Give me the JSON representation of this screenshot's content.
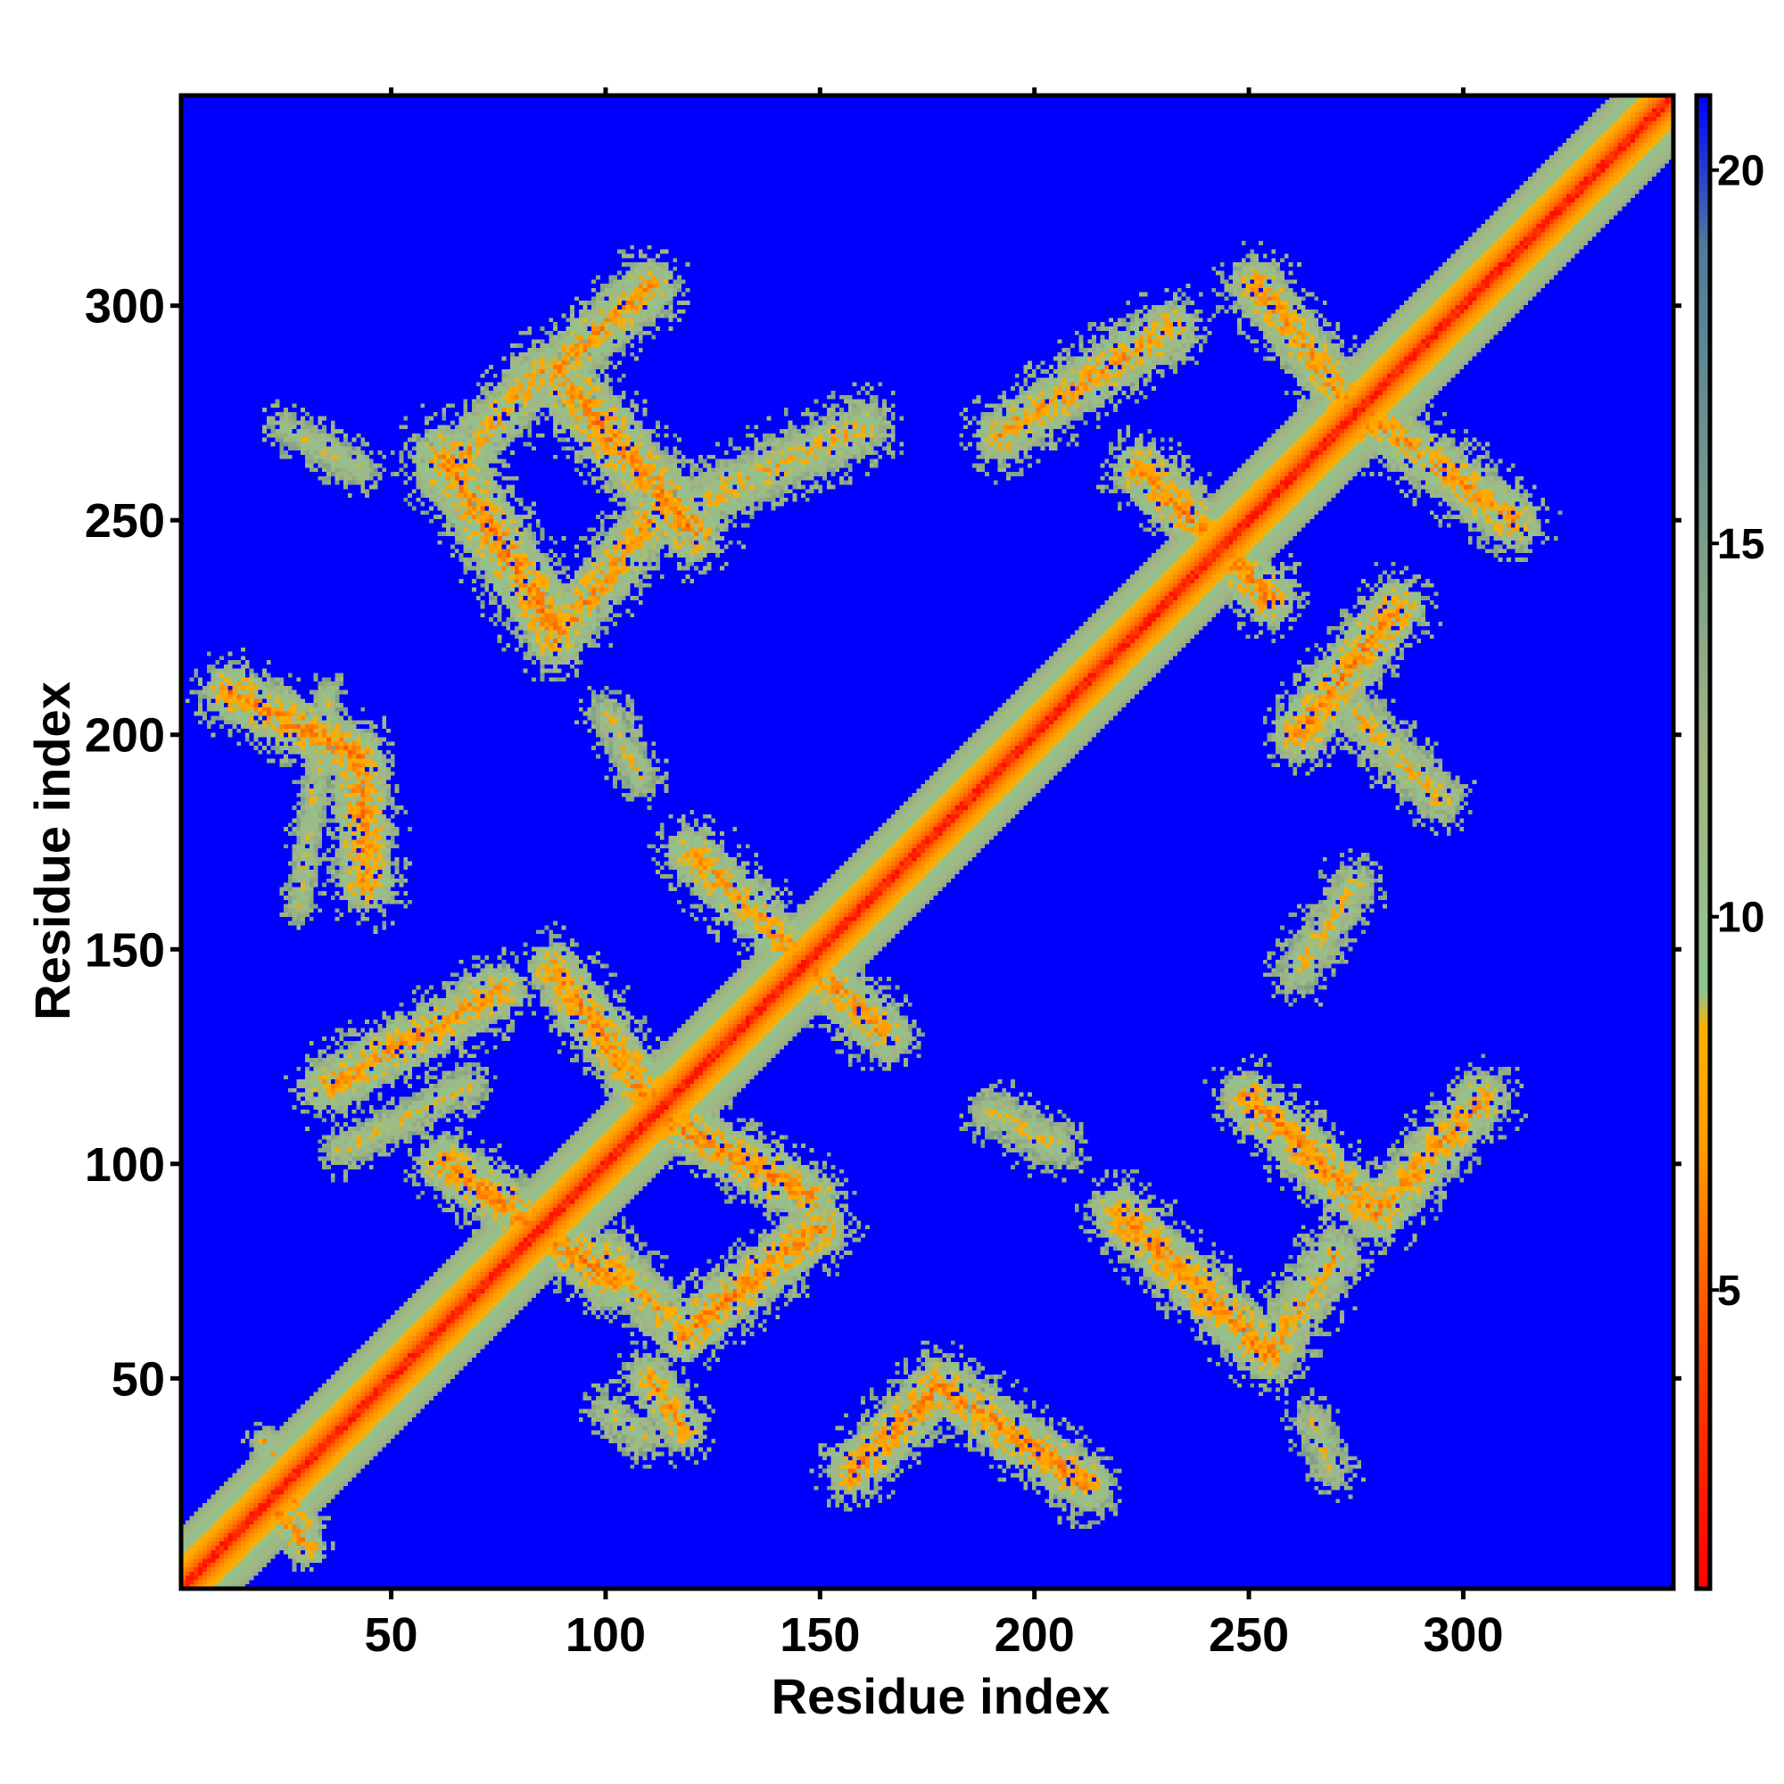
{
  "chart_data": {
    "type": "heatmap",
    "title": "",
    "xlabel": "Residue index",
    "ylabel": "Residue index",
    "xlim": [
      1,
      349
    ],
    "ylim": [
      1,
      349
    ],
    "x_ticks": [
      50,
      100,
      150,
      200,
      250,
      300
    ],
    "y_ticks": [
      50,
      100,
      150,
      200,
      250,
      300
    ],
    "colorbar": {
      "ticks": [
        5,
        10,
        15,
        20
      ],
      "range": [
        1,
        21
      ],
      "colors": [
        {
          "value": 1,
          "color": "#ff0000"
        },
        {
          "value": 4,
          "color": "#ff4000"
        },
        {
          "value": 7,
          "color": "#ff9d00"
        },
        {
          "value": 8.5,
          "color": "#ffb000"
        },
        {
          "value": 9,
          "color": "#8fc48f"
        },
        {
          "value": 12,
          "color": "#a3b583"
        },
        {
          "value": 15,
          "color": "#7b9e8a"
        },
        {
          "value": 19,
          "color": "#4f7a9a"
        },
        {
          "value": 21,
          "color": "#0000ff"
        }
      ]
    },
    "background_value": 21,
    "background_color": "#0000ff",
    "features": [
      {
        "kind": "diagonal",
        "from": [
          1,
          1
        ],
        "to": [
          349,
          349
        ],
        "core_value": 3.8,
        "halfwidth": 10
      },
      {
        "kind": "strand",
        "from": [
          22,
          20
        ],
        "to": [
          30,
          10
        ],
        "core_value": 6.5,
        "halfwidth": 4
      },
      {
        "kind": "strand",
        "from": [
          20,
          35
        ],
        "to": [
          30,
          15
        ],
        "core_value": 8,
        "halfwidth": 3
      },
      {
        "kind": "strand",
        "from": [
          12,
          210
        ],
        "to": [
          42,
          195
        ],
        "core_value": 6.5,
        "halfwidth": 6
      },
      {
        "kind": "strand",
        "from": [
          42,
          195
        ],
        "to": [
          44,
          165
        ],
        "core_value": 6.5,
        "halfwidth": 6
      },
      {
        "kind": "strand",
        "from": [
          35,
          210
        ],
        "to": [
          28,
          160
        ],
        "core_value": 9,
        "halfwidth": 3
      },
      {
        "kind": "strand",
        "from": [
          62,
          265
        ],
        "to": [
          88,
          225
        ],
        "core_value": 6.5,
        "halfwidth": 7
      },
      {
        "kind": "strand",
        "from": [
          88,
          222
        ],
        "to": [
          110,
          250
        ],
        "core_value": 7,
        "halfwidth": 6
      },
      {
        "kind": "strand",
        "from": [
          62,
          260
        ],
        "to": [
          85,
          285
        ],
        "core_value": 7.5,
        "halfwidth": 6
      },
      {
        "kind": "strand",
        "from": [
          88,
          285
        ],
        "to": [
          110,
          305
        ],
        "core_value": 7,
        "halfwidth": 6
      },
      {
        "kind": "strand",
        "from": [
          92,
          280
        ],
        "to": [
          120,
          248
        ],
        "core_value": 6.5,
        "halfwidth": 7
      },
      {
        "kind": "strand",
        "from": [
          125,
          256
        ],
        "to": [
          160,
          272
        ],
        "core_value": 8,
        "halfwidth": 6
      },
      {
        "kind": "strand",
        "from": [
          25,
          272
        ],
        "to": [
          42,
          262
        ],
        "core_value": 9,
        "halfwidth": 4
      },
      {
        "kind": "strand",
        "from": [
          100,
          205
        ],
        "to": [
          108,
          190
        ],
        "core_value": 9,
        "halfwidth": 4
      },
      {
        "kind": "strand",
        "from": [
          35,
          118
        ],
        "to": [
          75,
          140
        ],
        "core_value": 7,
        "halfwidth": 6
      },
      {
        "kind": "strand",
        "from": [
          38,
          103
        ],
        "to": [
          68,
          118
        ],
        "core_value": 9,
        "halfwidth": 4
      },
      {
        "kind": "strand",
        "from": [
          62,
          100
        ],
        "to": [
          102,
          72
        ],
        "core_value": 6.5,
        "halfwidth": 6
      },
      {
        "kind": "strand",
        "from": [
          88,
          145
        ],
        "to": [
          110,
          115
        ],
        "core_value": 6.5,
        "halfwidth": 6
      },
      {
        "kind": "strand",
        "from": [
          110,
          112
        ],
        "to": [
          148,
          92
        ],
        "core_value": 6.5,
        "halfwidth": 6
      },
      {
        "kind": "strand",
        "from": [
          100,
          78
        ],
        "to": [
          118,
          60
        ],
        "core_value": 7.5,
        "halfwidth": 6
      },
      {
        "kind": "strand",
        "from": [
          118,
          60
        ],
        "to": [
          150,
          85
        ],
        "core_value": 6.5,
        "halfwidth": 6
      },
      {
        "kind": "strand",
        "from": [
          110,
          50
        ],
        "to": [
          118,
          38
        ],
        "core_value": 7,
        "halfwidth": 5
      },
      {
        "kind": "strand",
        "from": [
          120,
          172
        ],
        "to": [
          165,
          130
        ],
        "core_value": 7,
        "halfwidth": 6
      },
      {
        "kind": "strand",
        "from": [
          100,
          42
        ],
        "to": [
          108,
          36
        ],
        "core_value": 9,
        "halfwidth": 4
      },
      {
        "kind": "strand",
        "from": [
          158,
          28
        ],
        "to": [
          178,
          48
        ],
        "core_value": 6.5,
        "halfwidth": 6
      },
      {
        "kind": "strand",
        "from": [
          178,
          48
        ],
        "to": [
          212,
          25
        ],
        "core_value": 6.5,
        "halfwidth": 6
      },
      {
        "kind": "strand",
        "from": [
          190,
          112
        ],
        "to": [
          205,
          104
        ],
        "core_value": 9,
        "halfwidth": 5
      },
      {
        "kind": "strand",
        "from": [
          220,
          88
        ],
        "to": [
          255,
          55
        ],
        "core_value": 6.5,
        "halfwidth": 6
      },
      {
        "kind": "strand",
        "from": [
          255,
          55
        ],
        "to": [
          270,
          78
        ],
        "core_value": 7.5,
        "halfwidth": 6
      },
      {
        "kind": "strand",
        "from": [
          250,
          115
        ],
        "to": [
          280,
          88
        ],
        "core_value": 6.5,
        "halfwidth": 6
      },
      {
        "kind": "strand",
        "from": [
          280,
          88
        ],
        "to": [
          305,
          115
        ],
        "core_value": 7,
        "halfwidth": 6
      },
      {
        "kind": "strand",
        "from": [
          262,
          145
        ],
        "to": [
          275,
          165
        ],
        "core_value": 8.5,
        "halfwidth": 5
      },
      {
        "kind": "strand",
        "from": [
          265,
          40
        ],
        "to": [
          270,
          28
        ],
        "core_value": 9,
        "halfwidth": 4
      },
      {
        "kind": "strand",
        "from": [
          192,
          270
        ],
        "to": [
          232,
          295
        ],
        "core_value": 7,
        "halfwidth": 6
      },
      {
        "kind": "strand",
        "from": [
          225,
          262
        ],
        "to": [
          255,
          232
        ],
        "core_value": 6.5,
        "halfwidth": 6
      },
      {
        "kind": "strand",
        "from": [
          252,
          305
        ],
        "to": [
          278,
          272
        ],
        "core_value": 7,
        "halfwidth": 6
      },
      {
        "kind": "strand",
        "from": [
          278,
          275
        ],
        "to": [
          312,
          250
        ],
        "core_value": 7,
        "halfwidth": 6
      },
      {
        "kind": "strand",
        "from": [
          262,
          200
        ],
        "to": [
          285,
          230
        ],
        "core_value": 6.5,
        "halfwidth": 6
      },
      {
        "kind": "strand",
        "from": [
          275,
          205
        ],
        "to": [
          295,
          185
        ],
        "core_value": 8,
        "halfwidth": 5
      }
    ]
  }
}
